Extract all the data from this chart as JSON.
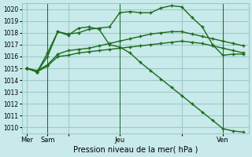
{
  "background_color": "#c8eaea",
  "grid_color": "#a0c8c8",
  "line_color": "#1a6b1a",
  "xlabel": "Pression niveau de la mer( hPa )",
  "ylim": [
    1009.5,
    1020.5
  ],
  "yticks": [
    1010,
    1011,
    1012,
    1013,
    1014,
    1015,
    1016,
    1017,
    1018,
    1019,
    1020
  ],
  "xtick_positions": [
    0,
    2,
    4,
    9,
    15,
    19
  ],
  "xtick_labels": [
    "Mer",
    "Sam",
    "",
    "Jeu",
    "",
    "Ven"
  ],
  "vlines": [
    2,
    9,
    19
  ],
  "series1": [
    1015.0,
    1014.7,
    1015.2,
    1016.0,
    1016.1,
    1016.3,
    1016.4,
    1016.5,
    1016.6,
    1016.7,
    1016.8,
    1016.9,
    1017.0,
    1017.1,
    1017.2,
    1017.3,
    1017.2,
    1017.1,
    1016.9,
    1016.7,
    1016.5,
    1016.3
  ],
  "series2": [
    1015.0,
    1014.8,
    1015.3,
    1016.2,
    1016.5,
    1016.6,
    1016.7,
    1016.9,
    1017.1,
    1017.3,
    1017.5,
    1017.7,
    1017.9,
    1018.0,
    1018.1,
    1018.1,
    1017.9,
    1017.7,
    1017.5,
    1017.3,
    1017.1,
    1016.9
  ],
  "series3_x": [
    0,
    1,
    2,
    3,
    4,
    5,
    6,
    7,
    8,
    9,
    10,
    11,
    12,
    13,
    14,
    15,
    16,
    17,
    18,
    19,
    20,
    21
  ],
  "series3": [
    1015.0,
    1014.7,
    1016.3,
    1018.1,
    1017.9,
    1018.0,
    1018.3,
    1018.4,
    1018.5,
    1019.7,
    1019.8,
    1019.7,
    1019.7,
    1020.1,
    1020.3,
    1020.2,
    1019.3,
    1018.5,
    1017.0,
    1016.1,
    1016.2,
    1016.2
  ],
  "series4_x": [
    0,
    1,
    2,
    3,
    4,
    5,
    6,
    7,
    8,
    9,
    10,
    11,
    12,
    13,
    14,
    15,
    16,
    17,
    18,
    19,
    20,
    21
  ],
  "series4": [
    1015.0,
    1014.7,
    1016.0,
    1018.1,
    1017.8,
    1018.4,
    1018.5,
    1018.3,
    1017.0,
    1016.8,
    1016.3,
    1015.5,
    1014.8,
    1014.1,
    1013.4,
    1012.7,
    1012.0,
    1011.3,
    1010.6,
    1009.9,
    1009.7,
    1009.6
  ]
}
